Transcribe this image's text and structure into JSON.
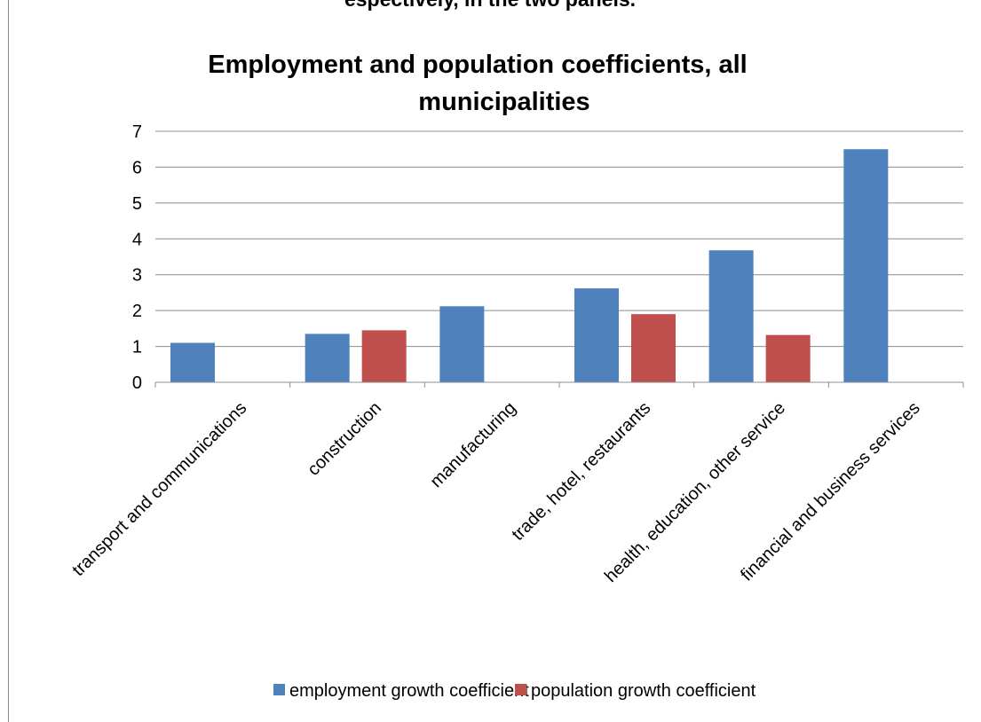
{
  "cut_heading": "espectively, in the two panels.",
  "chart_data": {
    "type": "bar",
    "title": "Employment and population coefficients, all municipalities",
    "title_lines": [
      "Employment and population coefficients, all",
      "municipalities"
    ],
    "xlabel": "",
    "ylabel": "",
    "categories": [
      "transport and communications",
      "construction",
      "manufacturing",
      "trade, hotel, restaurants",
      "health, education, other service",
      "financial and business services"
    ],
    "series": [
      {
        "name": "employment growth coefficient",
        "color": "#4F81BD",
        "values": [
          1.1,
          1.35,
          2.12,
          2.62,
          3.68,
          6.5
        ]
      },
      {
        "name": "population growth coefficient",
        "color": "#C0504D",
        "values": [
          null,
          1.45,
          null,
          1.9,
          1.32,
          null
        ]
      }
    ],
    "ylim": [
      0,
      7
    ],
    "yticks": [
      0,
      1,
      2,
      3,
      4,
      5,
      6,
      7
    ],
    "grid": true,
    "legend_position": "bottom"
  }
}
